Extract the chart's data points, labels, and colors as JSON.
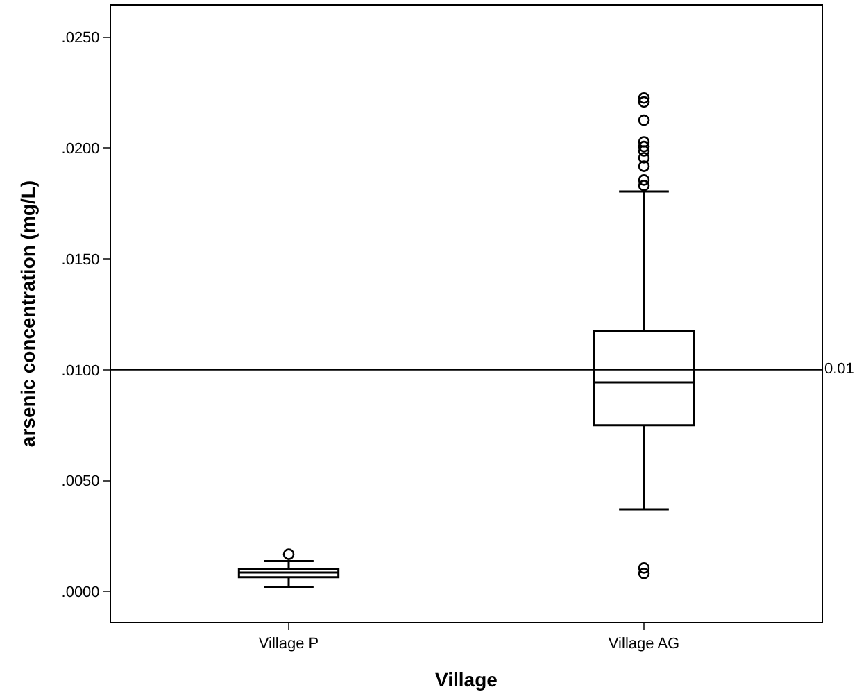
{
  "chart_data": {
    "type": "box",
    "xlabel": "Village",
    "ylabel": "arsenic concentration (mg/L)",
    "categories": [
      "Village P",
      "Village AG"
    ],
    "boxes": [
      {
        "low": 0.00021,
        "q1": 0.00064,
        "median": 0.00085,
        "q3": 0.001,
        "high": 0.00137,
        "outliers": [
          0.00168
        ]
      },
      {
        "low": 0.0037,
        "q1": 0.0075,
        "median": 0.00943,
        "q3": 0.01176,
        "high": 0.01804,
        "outliers": [
          0.00081,
          0.00106,
          0.01831,
          0.01856,
          0.01918,
          0.01956,
          0.01987,
          0.02007,
          0.02028,
          0.02126,
          0.02208,
          0.02226
        ]
      }
    ],
    "color": "#000000",
    "ylim": [
      -0.00137,
      0.02643
    ],
    "yticks": [
      {
        "value": 0,
        "label": ".0000"
      },
      {
        "value": 0.005,
        "label": ".0050"
      },
      {
        "value": 0.01,
        "label": ".0100"
      },
      {
        "value": 0.015,
        "label": ".0150"
      },
      {
        "value": 0.02,
        "label": ".0200"
      },
      {
        "value": 0.025,
        "label": ".0250"
      }
    ],
    "ref_lines": [
      {
        "axis": "y",
        "value": 0.01,
        "label": "0.01",
        "color": "#000000"
      }
    ],
    "marker": "circle"
  }
}
